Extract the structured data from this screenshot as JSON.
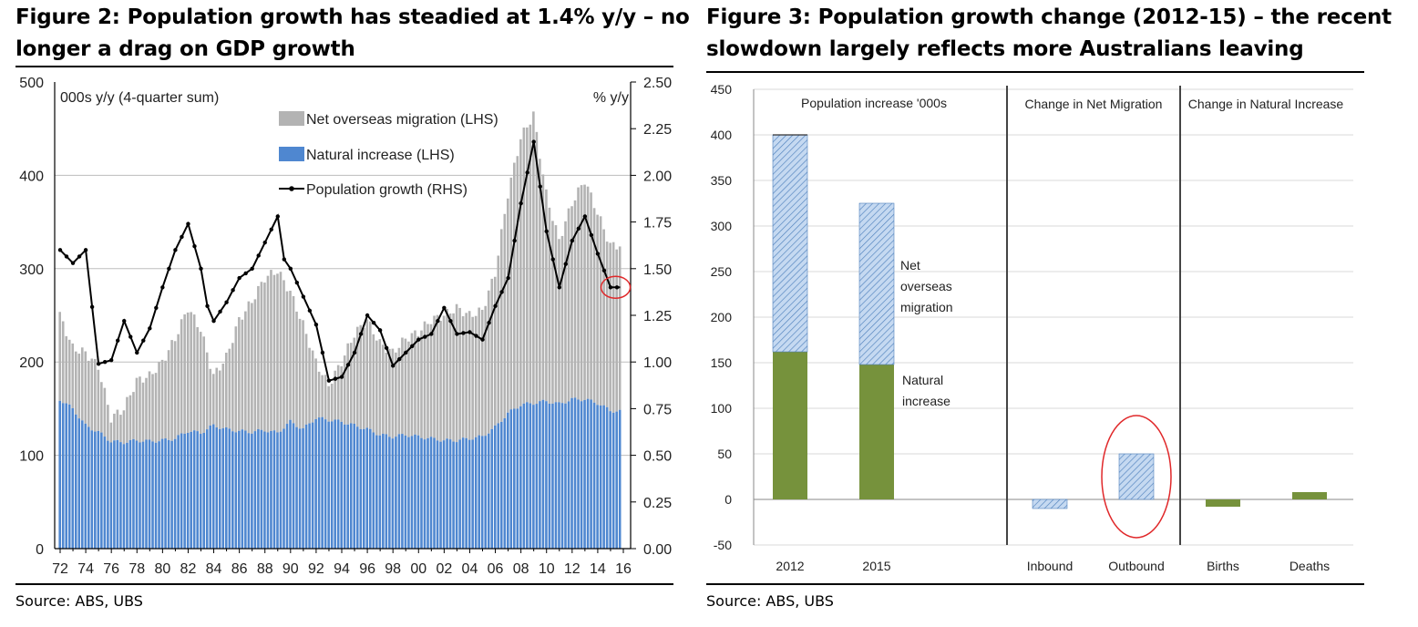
{
  "figure2": {
    "title_line1": "Figure 2: Population growth has steadied at 1.4% y/y – no",
    "title_line2": "longer a drag on GDP growth",
    "source": "Source: ABS, UBS"
  },
  "figure3": {
    "title_line1": "Figure 3: Population growth change (2012-15) – the recent",
    "title_line2": "slowdown largely reflects more Australians leaving",
    "source": "Source: ABS, UBS"
  },
  "chart_data": [
    {
      "type": "bar",
      "stacked": true,
      "title": "Population growth has steadied at 1.4% y/y",
      "ylabel_left": "000s y/y (4-quarter sum)",
      "ylabel_right": "% y/y",
      "ylim_left": [
        0,
        500
      ],
      "ylim_right": [
        0.0,
        2.5
      ],
      "yticks_left": [
        "0",
        "100",
        "200",
        "300",
        "400",
        "500"
      ],
      "yticks_right": [
        "0.00",
        "0.25",
        "0.50",
        "0.75",
        "1.00",
        "1.25",
        "1.50",
        "1.75",
        "2.00",
        "2.25",
        "2.50"
      ],
      "xticks": [
        "72",
        "74",
        "76",
        "78",
        "80",
        "82",
        "84",
        "86",
        "88",
        "90",
        "92",
        "94",
        "96",
        "98",
        "00",
        "02",
        "04",
        "06",
        "08",
        "10",
        "12",
        "14",
        "16"
      ],
      "x_range": [
        1972,
        2016
      ],
      "legend": [
        "Net overseas migration (LHS)",
        "Natural increase (LHS)",
        "Population growth (RHS)"
      ],
      "colors": {
        "migration": "#b3b3b3",
        "natural": "#4f87d0",
        "line": "#000000",
        "highlight": "#e0282a"
      },
      "natural_increase": [
        [
          1972,
          160
        ],
        [
          1973,
          150
        ],
        [
          1974,
          132
        ],
        [
          1975,
          125
        ],
        [
          1976,
          115
        ],
        [
          1977,
          114
        ],
        [
          1978,
          116
        ],
        [
          1979,
          115
        ],
        [
          1980,
          116
        ],
        [
          1981,
          118
        ],
        [
          1982,
          126
        ],
        [
          1983,
          124
        ],
        [
          1984,
          132
        ],
        [
          1985,
          128
        ],
        [
          1986,
          126
        ],
        [
          1987,
          125
        ],
        [
          1988,
          127
        ],
        [
          1989,
          124
        ],
        [
          1990,
          136
        ],
        [
          1991,
          128
        ],
        [
          1992,
          140
        ],
        [
          1993,
          138
        ],
        [
          1994,
          136
        ],
        [
          1995,
          132
        ],
        [
          1996,
          128
        ],
        [
          1997,
          122
        ],
        [
          1998,
          120
        ],
        [
          1999,
          122
        ],
        [
          2000,
          120
        ],
        [
          2001,
          118
        ],
        [
          2002,
          116
        ],
        [
          2003,
          116
        ],
        [
          2004,
          118
        ],
        [
          2005,
          120
        ],
        [
          2006,
          130
        ],
        [
          2007,
          145
        ],
        [
          2008,
          154
        ],
        [
          2009,
          156
        ],
        [
          2010,
          158
        ],
        [
          2011,
          155
        ],
        [
          2012,
          160
        ],
        [
          2013,
          160
        ],
        [
          2014,
          156
        ],
        [
          2015,
          148
        ],
        [
          2015.75,
          147
        ]
      ],
      "total_bars": [
        [
          1972,
          250
        ],
        [
          1973,
          215
        ],
        [
          1974,
          210
        ],
        [
          1975,
          195
        ],
        [
          1976,
          140
        ],
        [
          1977,
          150
        ],
        [
          1978,
          180
        ],
        [
          1979,
          185
        ],
        [
          1980,
          200
        ],
        [
          1981,
          225
        ],
        [
          1982,
          258
        ],
        [
          1983,
          235
        ],
        [
          1984,
          185
        ],
        [
          1985,
          205
        ],
        [
          1986,
          245
        ],
        [
          1987,
          265
        ],
        [
          1988,
          290
        ],
        [
          1989,
          298
        ],
        [
          1990,
          275
        ],
        [
          1991,
          240
        ],
        [
          1992,
          200
        ],
        [
          1993,
          175
        ],
        [
          1994,
          200
        ],
        [
          1995,
          230
        ],
        [
          1996,
          245
        ],
        [
          1997,
          220
        ],
        [
          1998,
          210
        ],
        [
          1999,
          225
        ],
        [
          2000,
          232
        ],
        [
          2001,
          245
        ],
        [
          2002,
          250
        ],
        [
          2003,
          258
        ],
        [
          2004,
          250
        ],
        [
          2005,
          255
        ],
        [
          2006,
          295
        ],
        [
          2007,
          380
        ],
        [
          2008,
          440
        ],
        [
          2009,
          465
        ],
        [
          2010,
          380
        ],
        [
          2011,
          330
        ],
        [
          2012,
          370
        ],
        [
          2013,
          395
        ],
        [
          2014,
          360
        ],
        [
          2015,
          325
        ],
        [
          2015.75,
          325
        ]
      ],
      "population_growth": [
        [
          1972,
          1.6
        ],
        [
          1973,
          1.53
        ],
        [
          1974,
          1.6
        ],
        [
          1975,
          0.99
        ],
        [
          1976,
          1.01
        ],
        [
          1977,
          1.22
        ],
        [
          1978,
          1.05
        ],
        [
          1979,
          1.18
        ],
        [
          1980,
          1.4
        ],
        [
          1981,
          1.6
        ],
        [
          1982,
          1.74
        ],
        [
          1983,
          1.5
        ],
        [
          1983.5,
          1.3
        ],
        [
          1984,
          1.22
        ],
        [
          1985,
          1.32
        ],
        [
          1986,
          1.45
        ],
        [
          1987,
          1.5
        ],
        [
          1988,
          1.64
        ],
        [
          1989,
          1.78
        ],
        [
          1989.5,
          1.55
        ],
        [
          1990,
          1.5
        ],
        [
          1991,
          1.35
        ],
        [
          1992,
          1.2
        ],
        [
          1993,
          0.9
        ],
        [
          1994,
          0.92
        ],
        [
          1995,
          1.05
        ],
        [
          1996,
          1.25
        ],
        [
          1997,
          1.17
        ],
        [
          1998,
          0.98
        ],
        [
          1999,
          1.05
        ],
        [
          2000,
          1.12
        ],
        [
          2001,
          1.15
        ],
        [
          2002,
          1.29
        ],
        [
          2003,
          1.15
        ],
        [
          2004,
          1.16
        ],
        [
          2005,
          1.12
        ],
        [
          2006,
          1.3
        ],
        [
          2007,
          1.45
        ],
        [
          2008,
          1.85
        ],
        [
          2009,
          2.18
        ],
        [
          2010,
          1.7
        ],
        [
          2011,
          1.4
        ],
        [
          2012,
          1.65
        ],
        [
          2013,
          1.78
        ],
        [
          2014,
          1.58
        ],
        [
          2015,
          1.4
        ],
        [
          2015.75,
          1.4
        ]
      ],
      "annotation": "circle at 2015 highlighting ~1.4% y/y"
    },
    {
      "type": "bar",
      "stacked": true,
      "title": "Population growth change (2012-15)",
      "ylim": [
        -50,
        450
      ],
      "yticks": [
        "-50",
        "0",
        "50",
        "100",
        "150",
        "200",
        "250",
        "300",
        "350",
        "400",
        "450"
      ],
      "panels": [
        "Population increase '000s",
        "Change in Net Migration",
        "Change in Natural Increase"
      ],
      "categories": [
        "2012",
        "2015",
        "Inbound",
        "Outbound",
        "Births",
        "Deaths"
      ],
      "series": [
        {
          "name": "Natural increase",
          "values": [
            162,
            148,
            null,
            null,
            -8,
            8
          ]
        },
        {
          "name": "Net overseas migration",
          "values": [
            238,
            177,
            -10,
            50,
            null,
            null
          ]
        }
      ],
      "labels": {
        "migration": [
          "Net",
          "overseas",
          "migration"
        ],
        "natural": [
          "Natural",
          "increase"
        ]
      },
      "colors": {
        "natural": "#76923c",
        "migration": "#c5d9f1",
        "hatch": "#4f81bd",
        "highlight": "#e0282a"
      },
      "annotation": "circle around Outbound bar"
    }
  ]
}
